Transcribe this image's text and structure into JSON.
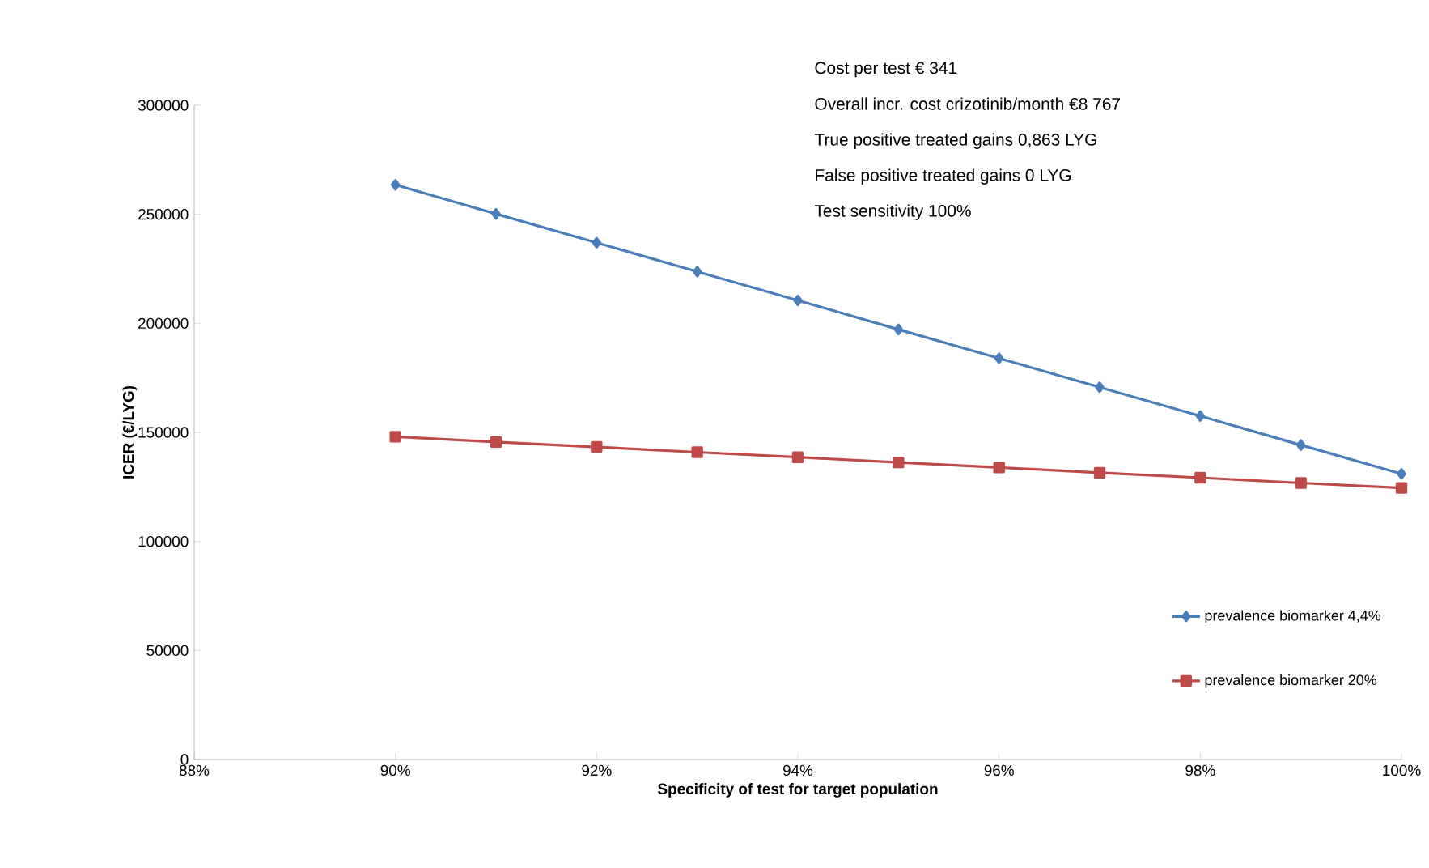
{
  "chart_data": {
    "type": "line",
    "xlabel": "Specificity of test for target population",
    "ylabel": "ICER (€/LYG)",
    "annotations": [
      "Cost per test  € 341",
      "Overall incr. cost crizotinib/month €8 767",
      "True positive treated gains 0,863 LYG",
      "False positive treated gains 0 LYG",
      "Test sensitivity 100%"
    ],
    "x": [
      90,
      91,
      92,
      93,
      94,
      95,
      96,
      97,
      98,
      99,
      100
    ],
    "series": [
      {
        "name": "prevalence biomarker 4,4%",
        "color": "#4a7ebb",
        "marker": "diamond",
        "values": [
          263500,
          250200,
          237000,
          223700,
          210500,
          197200,
          184000,
          170700,
          157500,
          144200,
          131000
        ]
      },
      {
        "name": "prevalence biomarker 20%",
        "color": "#be4b48",
        "marker": "square",
        "values": [
          148000,
          145600,
          143300,
          140900,
          138600,
          136200,
          133900,
          131500,
          129200,
          126800,
          124500
        ]
      }
    ],
    "xlim": [
      88,
      100
    ],
    "xticks": [
      {
        "value": 88,
        "label": "88%"
      },
      {
        "value": 90,
        "label": "90%"
      },
      {
        "value": 92,
        "label": "92%"
      },
      {
        "value": 94,
        "label": "94%"
      },
      {
        "value": 96,
        "label": "96%"
      },
      {
        "value": 98,
        "label": "98%"
      },
      {
        "value": 100,
        "label": "100%"
      }
    ],
    "ylim": [
      0,
      300000
    ],
    "yticks": [
      0,
      50000,
      100000,
      150000,
      200000,
      250000,
      300000
    ],
    "grid": false,
    "legend": "bottom right"
  }
}
